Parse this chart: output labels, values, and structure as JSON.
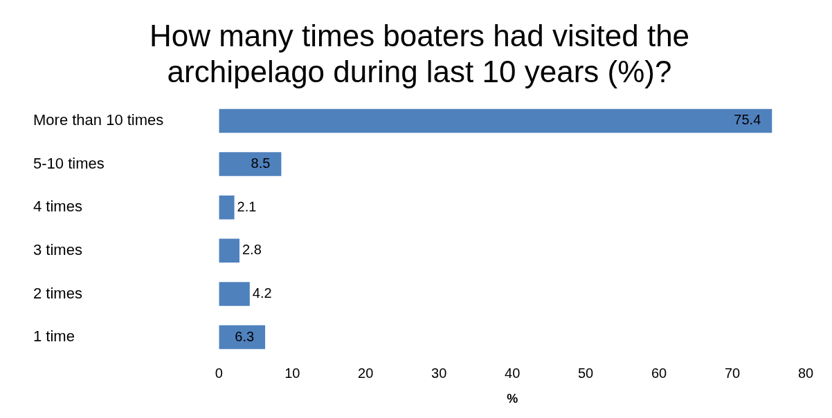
{
  "chart_data": {
    "type": "bar",
    "orientation": "horizontal",
    "title": "How many times boaters had visited the archipelago during last 10 years (%)?",
    "xlabel": "%",
    "categories": [
      "More than 10 times",
      "5-10 times",
      "4 times",
      "3 times",
      "2 times",
      "1 time"
    ],
    "values": [
      75.4,
      8.5,
      2.1,
      2.8,
      4.2,
      6.3
    ],
    "color": "#4f81bd",
    "xlim": [
      0,
      80
    ],
    "xticks": [
      0,
      10,
      20,
      30,
      40,
      50,
      60,
      70,
      80
    ],
    "grid": false,
    "legend": false,
    "data_labels": true
  }
}
